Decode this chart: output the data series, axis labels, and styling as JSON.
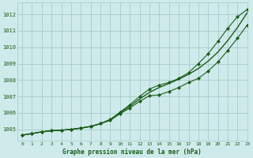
{
  "title": "Graphe pression niveau de la mer (hPa)",
  "background_color": "#ceeaea",
  "grid_color": "#a8cccc",
  "line_color": "#1a5c1a",
  "xlim": [
    -0.5,
    23
  ],
  "ylim": [
    1004.3,
    1012.7
  ],
  "yticks": [
    1005,
    1006,
    1007,
    1008,
    1009,
    1010,
    1011,
    1012
  ],
  "xticks": [
    0,
    1,
    2,
    3,
    4,
    5,
    6,
    7,
    8,
    9,
    10,
    11,
    12,
    13,
    14,
    15,
    16,
    17,
    18,
    19,
    20,
    21,
    22,
    23
  ],
  "series_smooth": [
    1004.65,
    1004.75,
    1004.85,
    1004.92,
    1004.95,
    1005.0,
    1005.08,
    1005.18,
    1005.35,
    1005.6,
    1006.0,
    1006.4,
    1006.85,
    1007.25,
    1007.55,
    1007.8,
    1008.05,
    1008.35,
    1008.7,
    1009.15,
    1009.7,
    1010.4,
    1011.2,
    1012.1
  ],
  "series_upper": [
    1004.65,
    1004.75,
    1004.85,
    1004.92,
    1004.95,
    1005.0,
    1005.08,
    1005.18,
    1005.35,
    1005.6,
    1006.05,
    1006.5,
    1007.0,
    1007.45,
    1007.7,
    1007.85,
    1008.1,
    1008.45,
    1009.0,
    1009.6,
    1010.35,
    1011.15,
    1011.85,
    1012.3
  ],
  "series_lower": [
    1004.65,
    1004.75,
    1004.85,
    1004.92,
    1004.95,
    1005.0,
    1005.08,
    1005.18,
    1005.35,
    1005.55,
    1005.95,
    1006.3,
    1006.7,
    1007.05,
    1007.1,
    1007.3,
    1007.55,
    1007.85,
    1008.1,
    1008.55,
    1009.1,
    1009.8,
    1010.55,
    1011.35
  ]
}
